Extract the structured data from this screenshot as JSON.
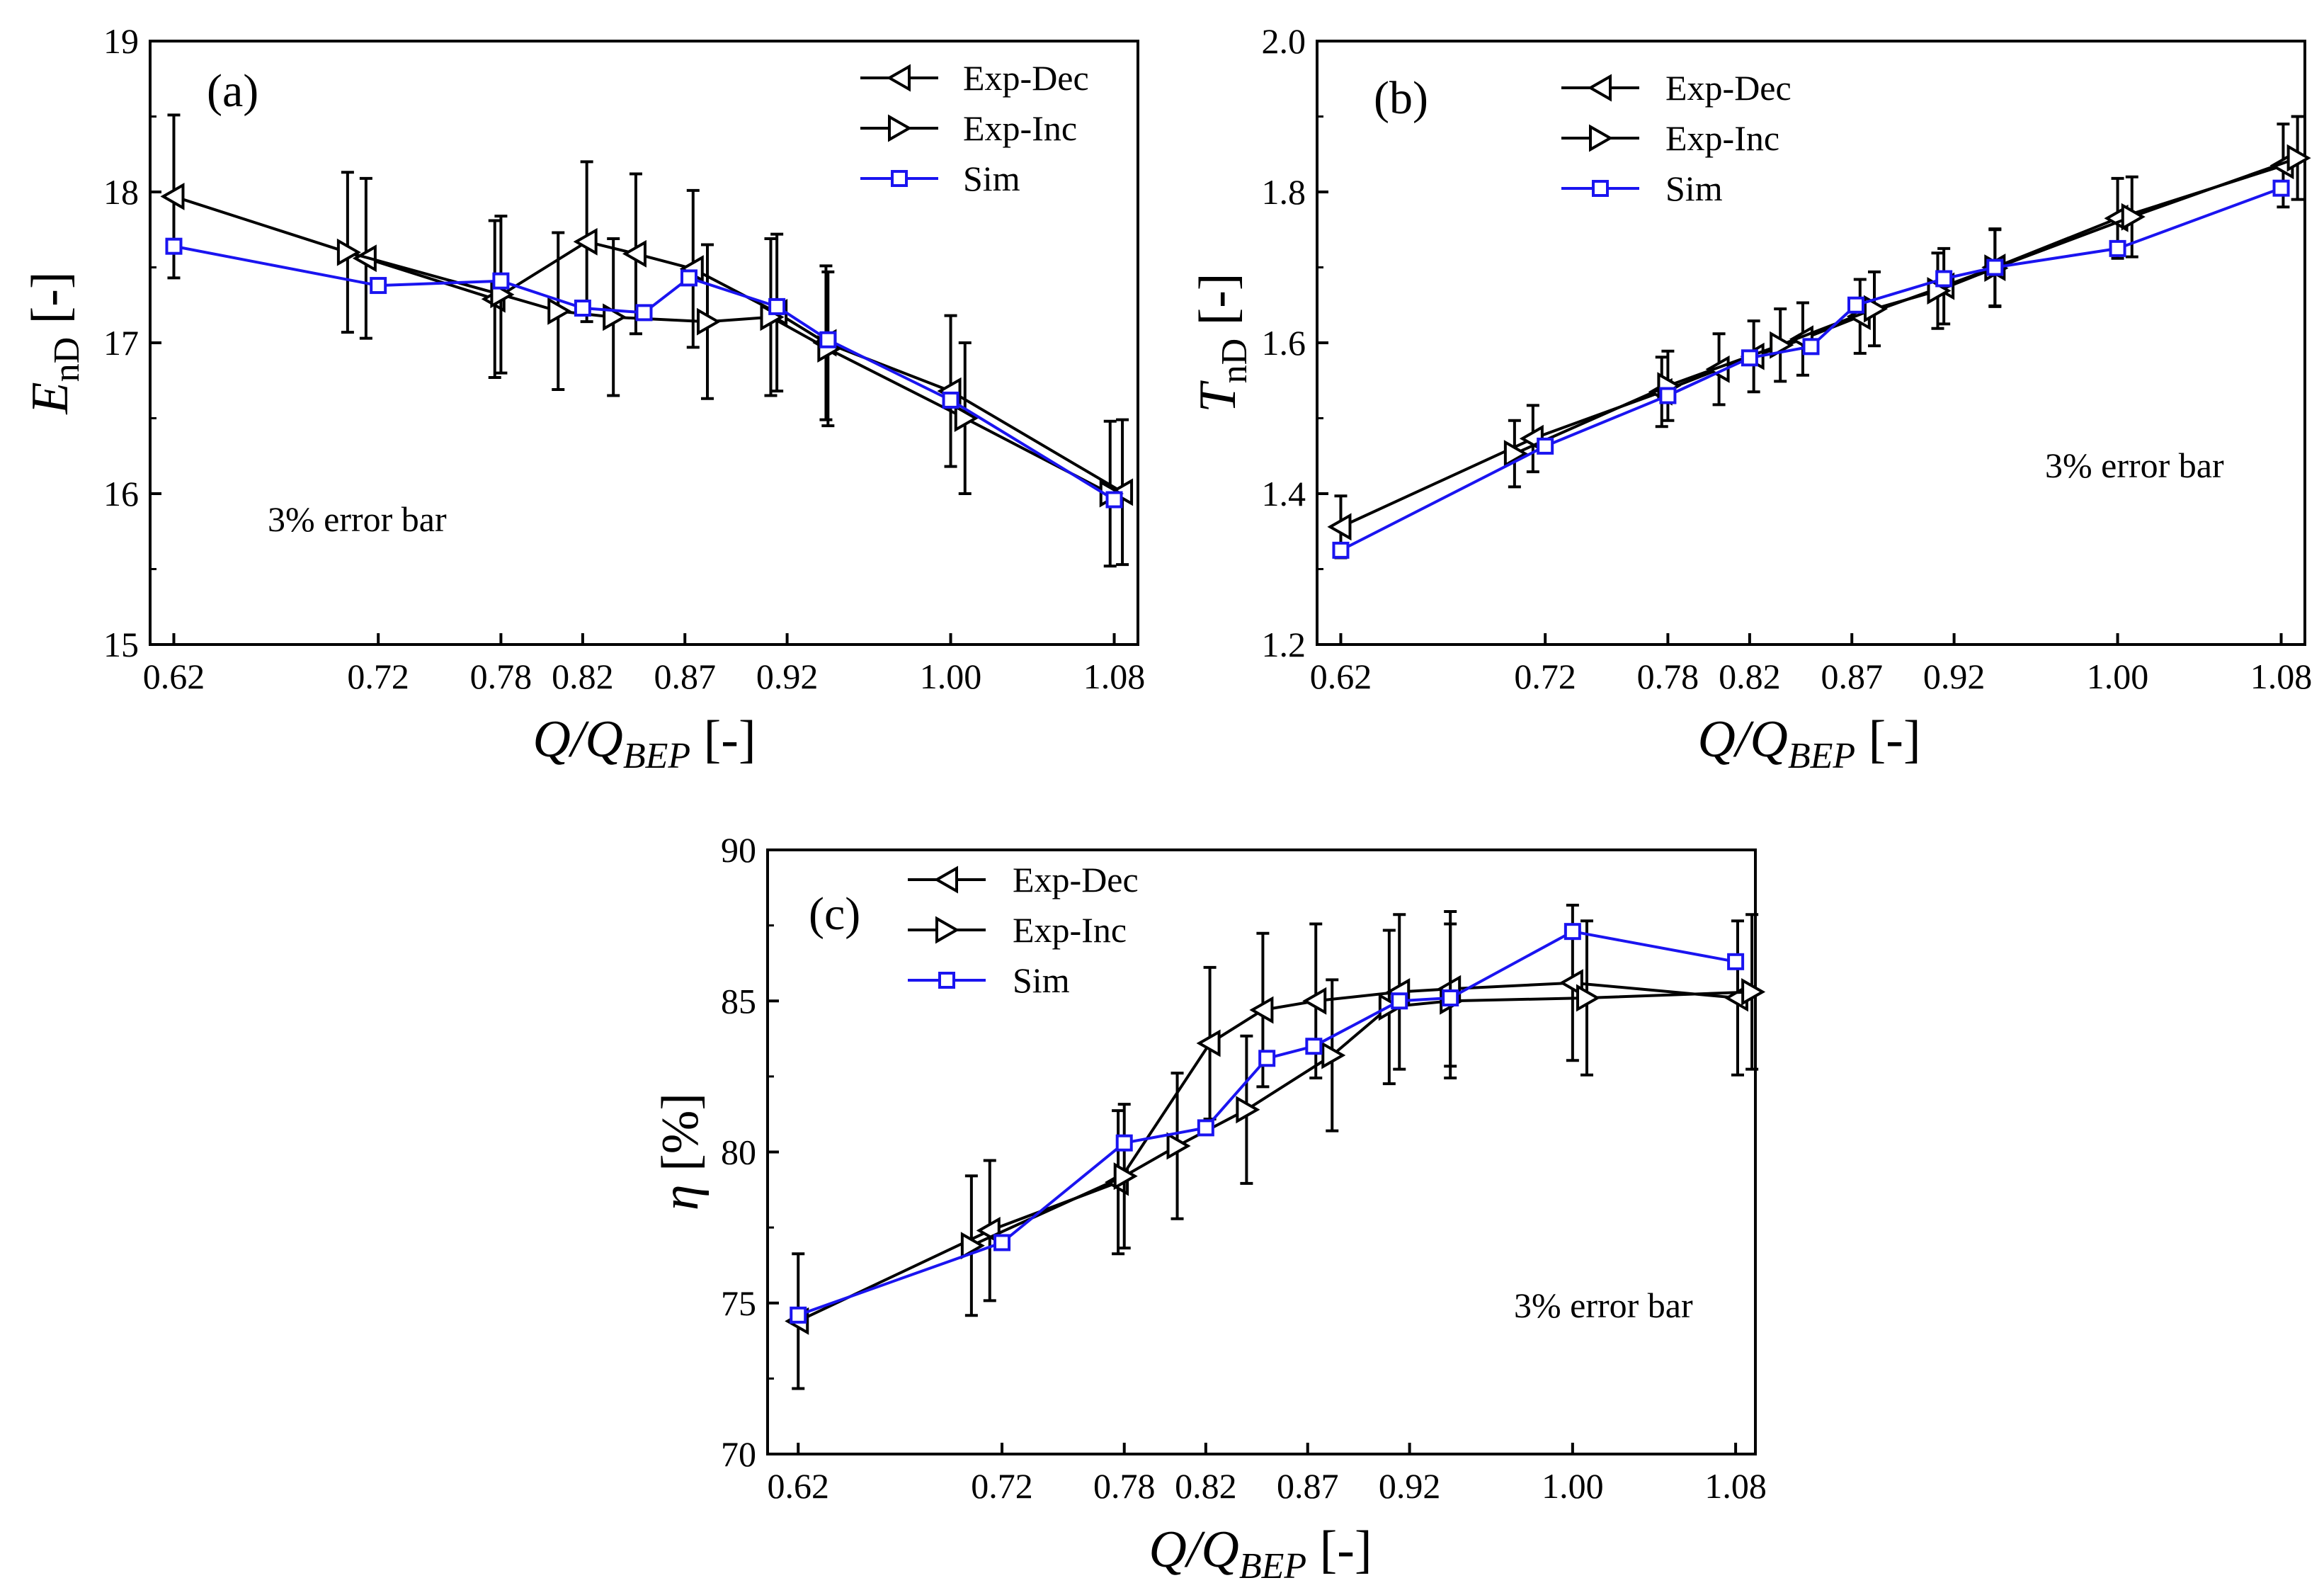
{
  "colors": {
    "exp": "#000000",
    "sim": "#1a14f0",
    "frame": "#000000"
  },
  "chart_data": [
    {
      "type": "line",
      "panel_label": "(a)",
      "xlabel": {
        "main": "Q/Q",
        "sub": "BEP",
        "unit": " [-]"
      },
      "ylabel": {
        "main": "E",
        "sub": "nD",
        "unit": " [-]"
      },
      "xlim": [
        0.62,
        1.08
      ],
      "ylim": [
        15,
        19
      ],
      "xtick_values": [
        0.62,
        0.72,
        0.78,
        0.82,
        0.87,
        0.92,
        1.0,
        1.08
      ],
      "xticks": [
        "0.62",
        "0.72",
        "0.78",
        "0.82",
        "0.87",
        "0.92",
        "1.00",
        "1.08"
      ],
      "yticks": [
        "15",
        "16",
        "17",
        "18",
        "19"
      ],
      "note": "3% error bar",
      "legend": [
        "Exp-Dec",
        "Exp-Inc",
        "Sim"
      ],
      "series": [
        {
          "name": "Exp-Dec",
          "marker": "tri-left",
          "x": [
            0.62,
            0.714,
            0.777,
            0.822,
            0.846,
            0.874,
            0.915,
            0.939,
            1.0,
            1.084
          ],
          "y": [
            17.97,
            17.56,
            17.29,
            17.67,
            17.59,
            17.49,
            17.2,
            17.0,
            16.68,
            16.01
          ],
          "err": [
            0.54,
            0.53,
            0.52,
            0.53,
            0.53,
            0.52,
            0.52,
            0.51,
            0.5,
            0.48
          ]
        },
        {
          "name": "Exp-Inc",
          "marker": "tri-right",
          "x": [
            0.705,
            0.78,
            0.808,
            0.835,
            0.881,
            0.912,
            0.94,
            1.007,
            1.078
          ],
          "y": [
            17.6,
            17.32,
            17.21,
            17.17,
            17.14,
            17.17,
            16.96,
            16.5,
            16.0
          ],
          "err": [
            0.53,
            0.52,
            0.52,
            0.52,
            0.51,
            0.52,
            0.51,
            0.5,
            0.48
          ]
        },
        {
          "name": "Sim",
          "marker": "square",
          "x": [
            0.62,
            0.72,
            0.78,
            0.82,
            0.85,
            0.872,
            0.915,
            0.94,
            1.0,
            1.08
          ],
          "y": [
            17.64,
            17.38,
            17.41,
            17.23,
            17.2,
            17.43,
            17.24,
            17.02,
            16.62,
            15.96
          ]
        }
      ]
    },
    {
      "type": "line",
      "panel_label": "(b)",
      "xlabel": {
        "main": "Q/Q",
        "sub": "BEP",
        "unit": " [-]"
      },
      "ylabel": {
        "main": "T",
        "sub": "nD",
        "unit": " [-]"
      },
      "xlim": [
        0.62,
        1.08
      ],
      "ylim": [
        1.2,
        2.0
      ],
      "xtick_values": [
        0.62,
        0.72,
        0.78,
        0.82,
        0.87,
        0.92,
        1.0,
        1.08
      ],
      "xticks": [
        "0.62",
        "0.72",
        "0.78",
        "0.82",
        "0.87",
        "0.92",
        "1.00",
        "1.08"
      ],
      "yticks": [
        "1.2",
        "1.4",
        "1.6",
        "1.8",
        "2.0"
      ],
      "note": "3% error bar",
      "legend": [
        "Exp-Dec",
        "Exp-Inc",
        "Sim"
      ],
      "series": [
        {
          "name": "Exp-Dec",
          "marker": "tri-left",
          "x": [
            0.62,
            0.714,
            0.777,
            0.805,
            0.822,
            0.846,
            0.874,
            0.915,
            0.94,
            1.0,
            1.081
          ],
          "y": [
            1.356,
            1.473,
            1.535,
            1.565,
            1.582,
            1.605,
            1.635,
            1.675,
            1.7,
            1.765,
            1.835
          ],
          "err": [
            0.041,
            0.044,
            0.046,
            0.047,
            0.047,
            0.048,
            0.049,
            0.05,
            0.051,
            0.053,
            0.055
          ]
        },
        {
          "name": "Exp-Inc",
          "marker": "tri-right",
          "x": [
            0.705,
            0.78,
            0.835,
            0.881,
            0.912,
            0.94,
            1.007,
            1.088
          ],
          "y": [
            1.453,
            1.543,
            1.597,
            1.645,
            1.669,
            1.699,
            1.767,
            1.845
          ],
          "err": [
            0.044,
            0.046,
            0.048,
            0.049,
            0.05,
            0.051,
            0.053,
            0.055
          ]
        },
        {
          "name": "Sim",
          "marker": "square",
          "x": [
            0.62,
            0.72,
            0.78,
            0.82,
            0.85,
            0.872,
            0.915,
            0.94,
            1.0,
            1.08
          ],
          "y": [
            1.325,
            1.463,
            1.53,
            1.58,
            1.595,
            1.65,
            1.685,
            1.7,
            1.725,
            1.805
          ]
        }
      ]
    },
    {
      "type": "line",
      "panel_label": "(c)",
      "xlabel": {
        "main": "Q/Q",
        "sub": "BEP",
        "unit": " [-]"
      },
      "ylabel": {
        "main": "η",
        "sub": "",
        "unit": " [%]"
      },
      "xlim": [
        0.62,
        1.08
      ],
      "ylim": [
        70,
        90
      ],
      "xtick_values": [
        0.62,
        0.72,
        0.78,
        0.82,
        0.87,
        0.92,
        1.0,
        1.08
      ],
      "xticks": [
        "0.62",
        "0.72",
        "0.78",
        "0.82",
        "0.87",
        "0.92",
        "1.00",
        "1.08"
      ],
      "yticks": [
        "70",
        "75",
        "80",
        "85",
        "90"
      ],
      "note": "3% error bar",
      "legend": [
        "Exp-Dec",
        "Exp-Inc",
        "Sim"
      ],
      "series": [
        {
          "name": "Exp-Dec",
          "marker": "tri-left",
          "x": [
            0.62,
            0.714,
            0.777,
            0.822,
            0.848,
            0.874,
            0.915,
            0.94,
            1.0,
            1.081
          ],
          "y": [
            74.4,
            77.4,
            79.0,
            83.6,
            84.7,
            85.0,
            85.3,
            85.4,
            85.6,
            85.1
          ],
          "err": [
            2.23,
            2.32,
            2.37,
            2.51,
            2.54,
            2.55,
            2.56,
            2.56,
            2.57,
            2.55
          ]
        },
        {
          "name": "Exp-Inc",
          "marker": "tri-right",
          "x": [
            0.705,
            0.78,
            0.806,
            0.84,
            0.882,
            0.91,
            0.94,
            1.007,
            1.088
          ],
          "y": [
            76.9,
            79.2,
            80.2,
            81.4,
            83.2,
            84.8,
            85.0,
            85.1,
            85.3
          ],
          "err": [
            2.31,
            2.38,
            2.41,
            2.44,
            2.5,
            2.54,
            2.55,
            2.55,
            2.56
          ]
        },
        {
          "name": "Sim",
          "marker": "square",
          "x": [
            0.62,
            0.72,
            0.78,
            0.82,
            0.85,
            0.873,
            0.915,
            0.94,
            1.0,
            1.08
          ],
          "y": [
            74.6,
            77.0,
            80.3,
            80.8,
            83.1,
            83.5,
            85.0,
            85.1,
            87.3,
            86.3
          ]
        }
      ]
    }
  ]
}
